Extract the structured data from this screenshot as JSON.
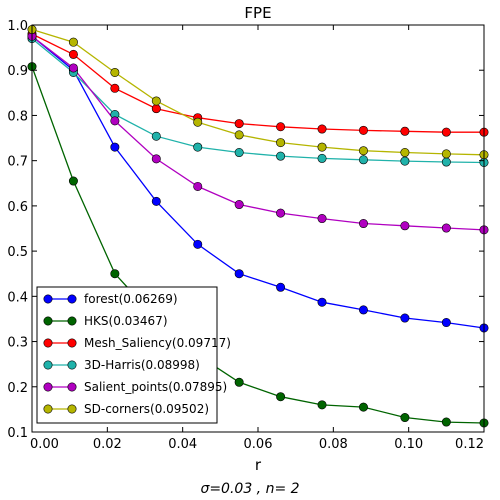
{
  "chart_data": {
    "type": "line",
    "title": "FPE",
    "xlabel": "r",
    "ylabel": "",
    "caption": "σ=0.03  , n= 2",
    "xlim": [
      0.0,
      0.12
    ],
    "ylim": [
      0.1,
      1.0
    ],
    "xticks": [
      "0.00",
      "0.02",
      "0.04",
      "0.06",
      "0.08",
      "0.10",
      "0.12"
    ],
    "yticks": [
      "0.1",
      "0.2",
      "0.3",
      "0.4",
      "0.5",
      "0.6",
      "0.7",
      "0.8",
      "0.9",
      "1.0"
    ],
    "grid": false,
    "legend_position": "lower-left",
    "x": [
      0.0,
      0.011,
      0.022,
      0.033,
      0.044,
      0.055,
      0.066,
      0.077,
      0.088,
      0.099,
      0.11,
      0.12
    ],
    "series": [
      {
        "name": "forest(0.06269)",
        "color": "#0000ff",
        "values": [
          0.975,
          0.9,
          0.73,
          0.61,
          0.515,
          0.45,
          0.42,
          0.387,
          0.37,
          0.352,
          0.342,
          0.33
        ]
      },
      {
        "name": "HKS(0.03467)",
        "color": "#006400",
        "values": [
          0.908,
          0.655,
          0.45,
          0.35,
          0.27,
          0.21,
          0.178,
          0.16,
          0.155,
          0.132,
          0.122,
          0.12
        ]
      },
      {
        "name": "Mesh_Saliency(0.09717)",
        "color": "#ff0000",
        "values": [
          0.98,
          0.935,
          0.86,
          0.815,
          0.795,
          0.782,
          0.775,
          0.77,
          0.767,
          0.765,
          0.763,
          0.763
        ]
      },
      {
        "name": "3D-Harris(0.08998)",
        "color": "#20b2aa",
        "values": [
          0.97,
          0.895,
          0.802,
          0.754,
          0.73,
          0.718,
          0.71,
          0.705,
          0.702,
          0.699,
          0.697,
          0.696
        ]
      },
      {
        "name": "Salient_points(0.07895)",
        "color": "#b000c0",
        "values": [
          0.975,
          0.905,
          0.788,
          0.704,
          0.643,
          0.603,
          0.584,
          0.572,
          0.561,
          0.556,
          0.551,
          0.547
        ]
      },
      {
        "name": "SD-corners(0.09502)",
        "color": "#b5b500",
        "values": [
          0.99,
          0.962,
          0.895,
          0.832,
          0.785,
          0.757,
          0.74,
          0.73,
          0.722,
          0.718,
          0.715,
          0.713
        ]
      }
    ]
  }
}
